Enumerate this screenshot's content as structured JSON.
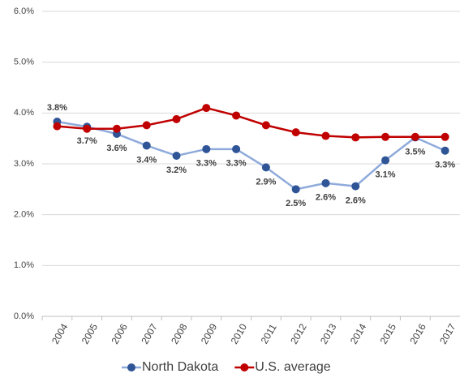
{
  "chart_data": {
    "type": "line",
    "categories": [
      "2004",
      "2005",
      "2006",
      "2007",
      "2008",
      "2009",
      "2010",
      "2011",
      "2012",
      "2013",
      "2014",
      "2015",
      "2016",
      "2017"
    ],
    "series": [
      {
        "name": "North Dakota",
        "color": "#8eaadb",
        "marker_color": "#2f5597",
        "values": [
          3.83,
          3.73,
          3.59,
          3.36,
          3.16,
          3.29,
          3.29,
          2.93,
          2.5,
          2.62,
          2.56,
          3.07,
          3.52,
          3.26
        ],
        "value_labels": [
          "3.8%",
          "3.7%",
          "3.6%",
          "3.4%",
          "3.2%",
          "3.3%",
          "3.3%",
          "2.9%",
          "2.5%",
          "2.6%",
          "2.6%",
          "3.1%",
          "3.5%",
          "3.3%"
        ]
      },
      {
        "name": "U.S. average",
        "color": "#c00000",
        "marker_color": "#c00000",
        "values": [
          3.74,
          3.69,
          3.69,
          3.76,
          3.88,
          4.1,
          3.95,
          3.76,
          3.62,
          3.55,
          3.52,
          3.53,
          3.53,
          3.53
        ]
      }
    ],
    "ylim": [
      0,
      6
    ],
    "yticks": [
      {
        "value": 0,
        "label": "0.0%"
      },
      {
        "value": 1,
        "label": "1.0%"
      },
      {
        "value": 2,
        "label": "2.0%"
      },
      {
        "value": 3,
        "label": "3.0%"
      },
      {
        "value": 4,
        "label": "4.0%"
      },
      {
        "value": 5,
        "label": "5.0%"
      },
      {
        "value": 6,
        "label": "6.0%"
      }
    ],
    "grid": true,
    "legend": "bottom"
  }
}
